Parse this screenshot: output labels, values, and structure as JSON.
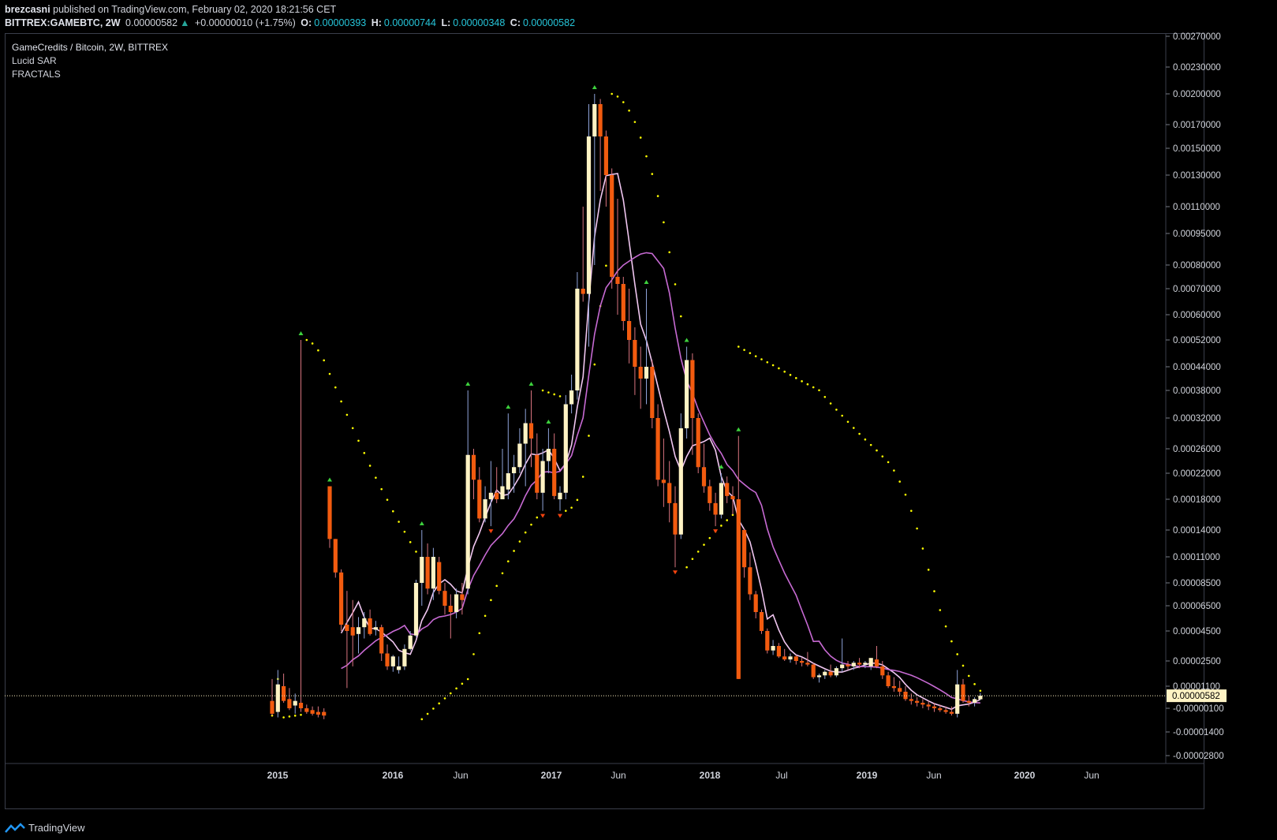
{
  "header": {
    "publisher": "brezcasni",
    "published_text": "published on TradingView.com, February 02, 2020 18:21:56 CET",
    "symbol": "BITTREX:GAMEBTC, 2W",
    "last": "0.00000582",
    "change": "+0.00000010 (+1.75%)",
    "o_label": "O:",
    "o": "0.00000393",
    "h_label": "H:",
    "h": "0.00000744",
    "l_label": "L:",
    "l": "0.00000348",
    "c_label": "C:",
    "c": "0.00000582"
  },
  "legend": {
    "title": "GameCredits / Bitcoin, 2W, BITTREX",
    "ind1": "Lucid SAR",
    "ind2": "FRACTALS"
  },
  "footer": {
    "brand": "TradingView",
    "icon": "tradingview-logo-icon"
  },
  "colors": {
    "up": "#fff3c4",
    "down": "#f25b0f",
    "sar": "#ffff00",
    "ma_fast": "#f0c6f0",
    "ma_slow": "#c76ad3",
    "fractal_up": "#3dd13d",
    "fractal_down": "#f2430f",
    "grid_border": "#3a3e4a",
    "price_tag_bg": "#fff3c4"
  },
  "chart_data": {
    "type": "candlestick",
    "price_axis_ticks": [
      "0.00270000",
      "0.00230000",
      "0.00200000",
      "0.00170000",
      "0.00150000",
      "0.00130000",
      "0.00110000",
      "0.00095000",
      "0.00080000",
      "0.00070000",
      "0.00060000",
      "0.00052000",
      "0.00044000",
      "0.00038000",
      "0.00032000",
      "0.00026000",
      "0.00022000",
      "0.00018000",
      "0.00014000",
      "0.00011000",
      "0.00008500",
      "0.00006500",
      "0.00004500",
      "0.00002500",
      "0.00001100",
      "-0.00000100",
      "-0.00001400",
      "-0.00002800"
    ],
    "time_axis_ticks": [
      "2015",
      "2016",
      "Jun",
      "2017",
      "Jun",
      "2018",
      "Jul",
      "2019",
      "Jun",
      "2020",
      "Jun"
    ],
    "last_price_label": "0.00000582",
    "candles": [
      {
        "o": 3e-06,
        "h": 1.5e-05,
        "l": -5e-06,
        "c": -4e-06
      },
      {
        "o": -3e-06,
        "h": 2e-05,
        "l": -6e-06,
        "c": 1.2e-05
      },
      {
        "o": 1.1e-05,
        "h": 1.8e-05,
        "l": 2e-06,
        "c": 3e-06
      },
      {
        "o": 4e-06,
        "h": 1e-05,
        "l": -2e-06,
        "c": -1e-06
      },
      {
        "o": 5e-07,
        "h": 7e-06,
        "l": -4e-06,
        "c": 3e-06
      },
      {
        "o": 2e-06,
        "h": 0.00052,
        "l": -3e-06,
        "c": -1e-06
      },
      {
        "o": -1e-06,
        "h": 1e-06,
        "l": -4e-06,
        "c": -3e-06
      },
      {
        "o": -2e-06,
        "h": 0.0,
        "l": -5e-06,
        "c": -4e-06
      },
      {
        "o": -3e-06,
        "h": 0.0,
        "l": -6e-06,
        "c": -4.5e-06
      },
      {
        "o": -3e-06,
        "h": -1e-06,
        "l": -7e-06,
        "c": -5e-06
      },
      {
        "o": 0.0002,
        "h": 0.0002,
        "l": 0.00012,
        "c": 0.00013
      },
      {
        "o": 0.00013,
        "h": 0.00013,
        "l": 9e-05,
        "c": 9.5e-05
      },
      {
        "o": 9.5e-05,
        "h": 9.8e-05,
        "l": 4.5e-05,
        "c": 5e-05
      },
      {
        "o": 5e-05,
        "h": 7.8e-05,
        "l": 1e-05,
        "c": 4.5e-05
      },
      {
        "o": 4.8e-05,
        "h": 7e-05,
        "l": 2.2e-05,
        "c": 4.2e-05
      },
      {
        "o": 4.3e-05,
        "h": 5.6e-05,
        "l": 3e-05,
        "c": 4.8e-05
      },
      {
        "o": 4.8e-05,
        "h": 6e-05,
        "l": 4e-05,
        "c": 5.5e-05
      },
      {
        "o": 5.5e-05,
        "h": 6.2e-05,
        "l": 4.2e-05,
        "c": 4.3e-05
      },
      {
        "o": 4.6e-05,
        "h": 5.3e-05,
        "l": 4.2e-05,
        "c": 4.8e-05
      },
      {
        "o": 4.8e-05,
        "h": 5e-05,
        "l": 2.5e-05,
        "c": 3e-05
      },
      {
        "o": 3e-05,
        "h": 3.6e-05,
        "l": 2e-05,
        "c": 2.2e-05
      },
      {
        "o": 2.2e-05,
        "h": 2.9e-05,
        "l": 1.9e-05,
        "c": 2.8e-05
      },
      {
        "o": 2e-05,
        "h": 2.8e-05,
        "l": 1.8e-05,
        "c": 2.2e-05
      },
      {
        "o": 2.2e-05,
        "h": 3.6e-05,
        "l": 2e-05,
        "c": 3.3e-05
      },
      {
        "o": 3.3e-05,
        "h": 4.5e-05,
        "l": 3.2e-05,
        "c": 4.2e-05
      },
      {
        "o": 4.2e-05,
        "h": 8.8e-05,
        "l": 4.1e-05,
        "c": 8.5e-05
      },
      {
        "o": 8.5e-05,
        "h": 0.00014,
        "l": 6.5e-05,
        "c": 0.00011
      },
      {
        "o": 0.00011,
        "h": 0.000125,
        "l": 7.5e-05,
        "c": 8e-05
      },
      {
        "o": 8e-05,
        "h": 0.00012,
        "l": 7e-05,
        "c": 0.00011
      },
      {
        "o": 0.000105,
        "h": 0.00011,
        "l": 7.5e-05,
        "c": 7.8e-05
      },
      {
        "o": 7.8e-05,
        "h": 8.5e-05,
        "l": 5.8e-05,
        "c": 6.5e-05
      },
      {
        "o": 6.5e-05,
        "h": 7.5e-05,
        "l": 4e-05,
        "c": 6e-05
      },
      {
        "o": 6e-05,
        "h": 8e-05,
        "l": 5.5e-05,
        "c": 7.5e-05
      },
      {
        "o": 7.5e-05,
        "h": 8.5e-05,
        "l": 5.8e-05,
        "c": 7e-05
      },
      {
        "o": 8e-05,
        "h": 0.00038,
        "l": 7.5e-05,
        "c": 0.00025
      },
      {
        "o": 0.00025,
        "h": 0.00026,
        "l": 0.00018,
        "c": 0.00021
      },
      {
        "o": 0.00021,
        "h": 0.00023,
        "l": 0.00015,
        "c": 0.000155
      },
      {
        "o": 0.000155,
        "h": 0.0002,
        "l": 0.00015,
        "c": 0.00018
      },
      {
        "o": 0.00018,
        "h": 0.00024,
        "l": 0.000145,
        "c": 0.00019
      },
      {
        "o": 0.00019,
        "h": 0.00023,
        "l": 0.000175,
        "c": 0.00018
      },
      {
        "o": 0.00018,
        "h": 0.00026,
        "l": 0.00018,
        "c": 0.0002
      },
      {
        "o": 0.000195,
        "h": 0.00033,
        "l": 0.00018,
        "c": 0.00022
      },
      {
        "o": 0.00022,
        "h": 0.00025,
        "l": 0.00019,
        "c": 0.00023
      },
      {
        "o": 0.00023,
        "h": 0.0003,
        "l": 0.00022,
        "c": 0.00027
      },
      {
        "o": 0.00027,
        "h": 0.00034,
        "l": 0.0002,
        "c": 0.00031
      },
      {
        "o": 0.00031,
        "h": 0.00038,
        "l": 0.00023,
        "c": 0.00028
      },
      {
        "o": 0.00025,
        "h": 0.00029,
        "l": 0.00018,
        "c": 0.00019
      },
      {
        "o": 0.00019,
        "h": 0.00026,
        "l": 0.000165,
        "c": 0.00024
      },
      {
        "o": 0.00024,
        "h": 0.0003,
        "l": 0.00022,
        "c": 0.00026
      },
      {
        "o": 0.00026,
        "h": 0.00029,
        "l": 0.00018,
        "c": 0.000185
      },
      {
        "o": 0.00018,
        "h": 0.0002,
        "l": 0.000165,
        "c": 0.00019
      },
      {
        "o": 0.00019,
        "h": 0.00037,
        "l": 0.00018,
        "c": 0.00035
      },
      {
        "o": 0.00035,
        "h": 0.00042,
        "l": 0.00033,
        "c": 0.00038
      },
      {
        "o": 0.00038,
        "h": 0.00077,
        "l": 0.00036,
        "c": 0.0007
      },
      {
        "o": 0.0007,
        "h": 0.0011,
        "l": 0.00065,
        "c": 0.00068
      },
      {
        "o": 0.00068,
        "h": 0.0019,
        "l": 0.0005,
        "c": 0.0016
      },
      {
        "o": 0.0016,
        "h": 0.002,
        "l": 0.0008,
        "c": 0.0019
      },
      {
        "o": 0.0019,
        "h": 0.00195,
        "l": 0.0012,
        "c": 0.0016
      },
      {
        "o": 0.0016,
        "h": 0.00165,
        "l": 0.0011,
        "c": 0.0013
      },
      {
        "o": 0.0013,
        "h": 0.00135,
        "l": 0.0007,
        "c": 0.00075
      },
      {
        "o": 0.00075,
        "h": 0.00115,
        "l": 0.0006,
        "c": 0.00072
      },
      {
        "o": 0.00072,
        "h": 0.00075,
        "l": 0.00055,
        "c": 0.00058
      },
      {
        "o": 0.00058,
        "h": 0.0007,
        "l": 0.00045,
        "c": 0.00052
      },
      {
        "o": 0.00052,
        "h": 0.00056,
        "l": 0.00037,
        "c": 0.00044
      },
      {
        "o": 0.00044,
        "h": 0.0005,
        "l": 0.00034,
        "c": 0.00041
      },
      {
        "o": 0.00041,
        "h": 0.0007,
        "l": 0.00035,
        "c": 0.00044
      },
      {
        "o": 0.00044,
        "h": 0.00046,
        "l": 0.0003,
        "c": 0.00032
      },
      {
        "o": 0.00032,
        "h": 0.00035,
        "l": 0.0002,
        "c": 0.00021
      },
      {
        "o": 0.00021,
        "h": 0.00028,
        "l": 0.00017,
        "c": 0.000205
      },
      {
        "o": 0.000205,
        "h": 0.00024,
        "l": 0.00015,
        "c": 0.000175
      },
      {
        "o": 0.000175,
        "h": 0.0002,
        "l": 0.0001,
        "c": 0.000135
      },
      {
        "o": 0.000135,
        "h": 0.00033,
        "l": 0.00013,
        "c": 0.0003
      },
      {
        "o": 0.0003,
        "h": 0.0005,
        "l": 0.00028,
        "c": 0.00046
      },
      {
        "o": 0.00046,
        "h": 0.00048,
        "l": 0.00025,
        "c": 0.00032
      },
      {
        "o": 0.00032,
        "h": 0.00033,
        "l": 0.00022,
        "c": 0.00023
      },
      {
        "o": 0.00023,
        "h": 0.00027,
        "l": 0.00019,
        "c": 0.0002
      },
      {
        "o": 0.0002,
        "h": 0.00021,
        "l": 0.000165,
        "c": 0.000175
      },
      {
        "o": 0.000175,
        "h": 0.00019,
        "l": 0.000145,
        "c": 0.00016
      },
      {
        "o": 0.00016,
        "h": 0.00022,
        "l": 0.000155,
        "c": 0.000205
      },
      {
        "o": 0.000205,
        "h": 0.000215,
        "l": 0.000175,
        "c": 0.000185
      },
      {
        "o": 0.000185,
        "h": 0.0002,
        "l": 0.00016,
        "c": 0.00018
      },
      {
        "o": 0.00018,
        "h": 0.000285,
        "l": 1.5e-05,
        "c": 1.5e-05
      },
      {
        "o": 0.00014,
        "h": 0.000142,
        "l": 9e-05,
        "c": 0.0001
      },
      {
        "o": 0.0001,
        "h": 0.000115,
        "l": 7e-05,
        "c": 7.5e-05
      },
      {
        "o": 7.5e-05,
        "h": 7.8e-05,
        "l": 5.5e-05,
        "c": 6e-05
      },
      {
        "o": 6e-05,
        "h": 6.2e-05,
        "l": 4.3e-05,
        "c": 4.5e-05
      },
      {
        "o": 4.5e-05,
        "h": 4.7e-05,
        "l": 3e-05,
        "c": 3.2e-05
      },
      {
        "o": 3.2e-05,
        "h": 3.9e-05,
        "l": 2.9e-05,
        "c": 3.5e-05
      },
      {
        "o": 3.5e-05,
        "h": 3.7e-05,
        "l": 2.7e-05,
        "c": 2.8e-05
      },
      {
        "o": 2.8e-05,
        "h": 3.3e-05,
        "l": 2.5e-05,
        "c": 2.6e-05
      },
      {
        "o": 2.6e-05,
        "h": 3e-05,
        "l": 2.4e-05,
        "c": 2.8e-05
      },
      {
        "o": 2.8e-05,
        "h": 2.9e-05,
        "l": 2.3e-05,
        "c": 2.5e-05
      },
      {
        "o": 2.5e-05,
        "h": 2.7e-05,
        "l": 2.2e-05,
        "c": 2.4e-05
      },
      {
        "o": 2.4e-05,
        "h": 3.1e-05,
        "l": 2.2e-05,
        "c": 2.3e-05
      },
      {
        "o": 2.3e-05,
        "h": 2.4e-05,
        "l": 1.5e-05,
        "c": 1.6e-05
      },
      {
        "o": 1.6e-05,
        "h": 1.8e-05,
        "l": 1.3e-05,
        "c": 1.7e-05
      },
      {
        "o": 1.7e-05,
        "h": 2e-05,
        "l": 1.5e-05,
        "c": 1.9e-05
      },
      {
        "o": 1.9e-05,
        "h": 2.3e-05,
        "l": 1.6e-05,
        "c": 1.7e-05
      },
      {
        "o": 1.7e-05,
        "h": 2.2e-05,
        "l": 1.6e-05,
        "c": 2.1e-05
      },
      {
        "o": 2.1e-05,
        "h": 4e-05,
        "l": 1.9e-05,
        "c": 2.3e-05
      },
      {
        "o": 2.3e-05,
        "h": 2.5e-05,
        "l": 2e-05,
        "c": 2.2e-05
      },
      {
        "o": 2.2e-05,
        "h": 2.5e-05,
        "l": 2e-05,
        "c": 2.4e-05
      },
      {
        "o": 2.4e-05,
        "h": 2.7e-05,
        "l": 2.1e-05,
        "c": 2.3e-05
      },
      {
        "o": 2.3e-05,
        "h": 2.5e-05,
        "l": 2.1e-05,
        "c": 2.4e-05
      },
      {
        "o": 2.2e-05,
        "h": 2.6e-05,
        "l": 2e-05,
        "c": 2.7e-05
      },
      {
        "o": 2.6e-05,
        "h": 3.5e-05,
        "l": 2.1e-05,
        "c": 2.2e-05
      },
      {
        "o": 2.2e-05,
        "h": 2.5e-05,
        "l": 1.5e-05,
        "c": 1.7e-05
      },
      {
        "o": 1.7e-05,
        "h": 1.9e-05,
        "l": 1e-05,
        "c": 1.1e-05
      },
      {
        "o": 1.1e-05,
        "h": 1.6e-05,
        "l": 8e-06,
        "c": 1e-05
      },
      {
        "o": 1e-05,
        "h": 1.4e-05,
        "l": 6e-06,
        "c": 8e-06
      },
      {
        "o": 8e-06,
        "h": 1.1e-05,
        "l": 3e-06,
        "c": 4e-06
      },
      {
        "o": 4e-06,
        "h": 7e-06,
        "l": 1e-06,
        "c": 3e-06
      },
      {
        "o": 3e-06,
        "h": 5e-06,
        "l": 0.0,
        "c": 2e-06
      },
      {
        "o": 2e-06,
        "h": 4e-06,
        "l": -1e-06,
        "c": 1e-06
      },
      {
        "o": 1e-06,
        "h": 3e-06,
        "l": -2e-06,
        "c": 0.0
      },
      {
        "o": 0.0,
        "h": 2e-06,
        "l": -3e-06,
        "c": -1e-06
      },
      {
        "o": -1e-06,
        "h": 1e-06,
        "l": -3e-06,
        "c": -2e-06
      },
      {
        "o": -2e-06,
        "h": 0.0,
        "l": -4e-06,
        "c": -3e-06
      },
      {
        "o": -3e-06,
        "h": 0.0,
        "l": -5e-06,
        "c": -4e-06
      },
      {
        "o": -4e-06,
        "h": 2e-05,
        "l": -6e-06,
        "c": 1.2e-05
      },
      {
        "o": 1.2e-05,
        "h": 1.5e-05,
        "l": 2e-06,
        "c": 3e-06
      },
      {
        "o": 3e-06,
        "h": 6e-06,
        "l": 0.0,
        "c": 2e-06
      },
      {
        "o": 2e-06,
        "h": 5e-06,
        "l": 0.0,
        "c": 4e-06
      },
      {
        "o": 3.9e-06,
        "h": 7.4e-06,
        "l": 3.5e-06,
        "c": 5.8e-06
      }
    ]
  }
}
